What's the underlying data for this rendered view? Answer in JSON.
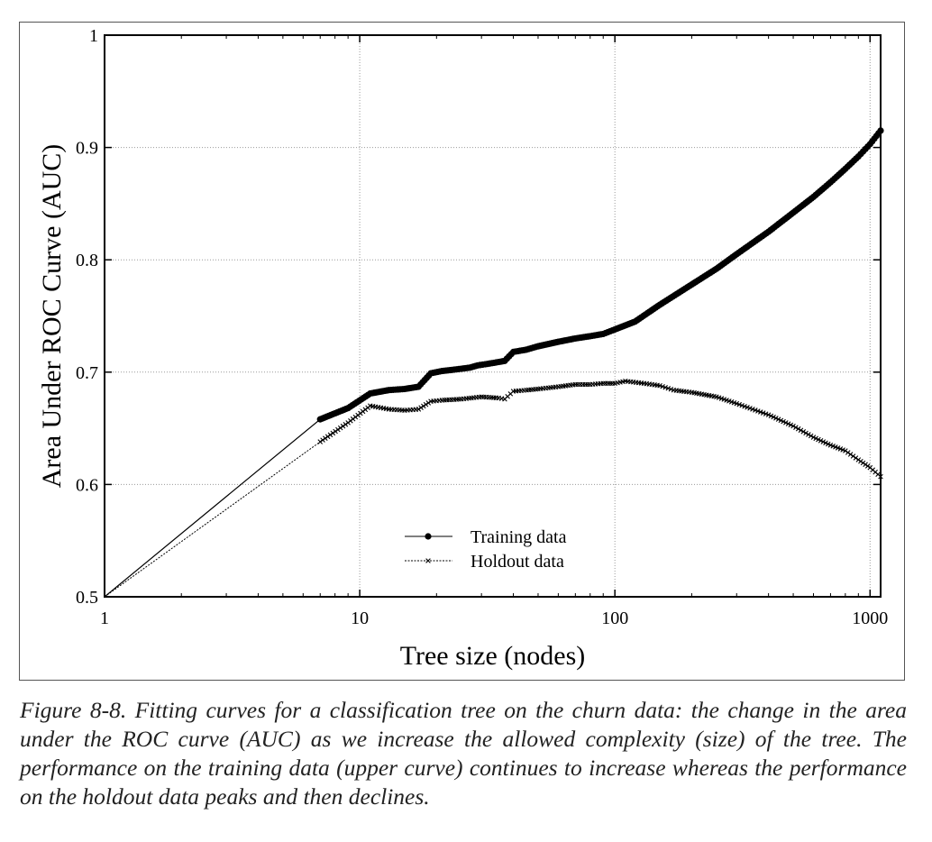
{
  "chart_data": {
    "type": "line",
    "xlabel": "Tree size (nodes)",
    "ylabel": "Area Under ROC Curve (AUC)",
    "xscale": "log",
    "xlim": [
      1,
      1100
    ],
    "ylim": [
      0.5,
      1.0
    ],
    "xticks": [
      1,
      10,
      100,
      1000
    ],
    "xtick_labels": [
      "1",
      "10",
      "100",
      "1000"
    ],
    "yticks": [
      0.5,
      0.6,
      0.7,
      0.8,
      0.9,
      1.0
    ],
    "ytick_labels": [
      "0.5",
      "0.6",
      "0.7",
      "0.8",
      "0.9",
      "1"
    ],
    "grid": true,
    "legend_position": "lower-center",
    "series": [
      {
        "name": "Training data",
        "marker": "circle",
        "style": "solid",
        "color": "#000000",
        "x": [
          1,
          7,
          9,
          11,
          13,
          15,
          17,
          19,
          21,
          23,
          25,
          27,
          29,
          31,
          33,
          35,
          37,
          40,
          45,
          50,
          60,
          70,
          80,
          90,
          100,
          120,
          150,
          200,
          250,
          300,
          400,
          500,
          600,
          700,
          800,
          900,
          1000,
          1100
        ],
        "y": [
          0.5,
          0.658,
          0.668,
          0.681,
          0.684,
          0.685,
          0.687,
          0.699,
          0.701,
          0.702,
          0.703,
          0.704,
          0.706,
          0.707,
          0.708,
          0.709,
          0.71,
          0.718,
          0.72,
          0.723,
          0.727,
          0.73,
          0.732,
          0.734,
          0.738,
          0.745,
          0.76,
          0.778,
          0.792,
          0.805,
          0.825,
          0.842,
          0.856,
          0.869,
          0.881,
          0.892,
          0.903,
          0.915
        ]
      },
      {
        "name": "Holdout data",
        "marker": "x",
        "style": "dotted",
        "color": "#000000",
        "x": [
          1,
          7,
          9,
          11,
          13,
          15,
          17,
          19,
          21,
          25,
          30,
          35,
          37,
          40,
          45,
          50,
          60,
          70,
          80,
          90,
          100,
          110,
          130,
          150,
          170,
          200,
          250,
          300,
          400,
          500,
          600,
          700,
          800,
          900,
          1000,
          1100
        ],
        "y": [
          0.5,
          0.638,
          0.655,
          0.67,
          0.667,
          0.666,
          0.667,
          0.674,
          0.675,
          0.676,
          0.678,
          0.677,
          0.676,
          0.683,
          0.684,
          0.685,
          0.687,
          0.689,
          0.689,
          0.69,
          0.69,
          0.692,
          0.69,
          0.688,
          0.684,
          0.682,
          0.678,
          0.672,
          0.662,
          0.652,
          0.642,
          0.635,
          0.63,
          0.622,
          0.615,
          0.607
        ]
      }
    ]
  },
  "caption": "Figure 8-8. Fitting curves for a classification tree on the churn data: the change in the area under the ROC curve (AUC) as we increase the allowed complexity (size) of the tree. The performance on the training data (upper curve) continues to increase whereas the performance on the holdout data peaks and then declines."
}
